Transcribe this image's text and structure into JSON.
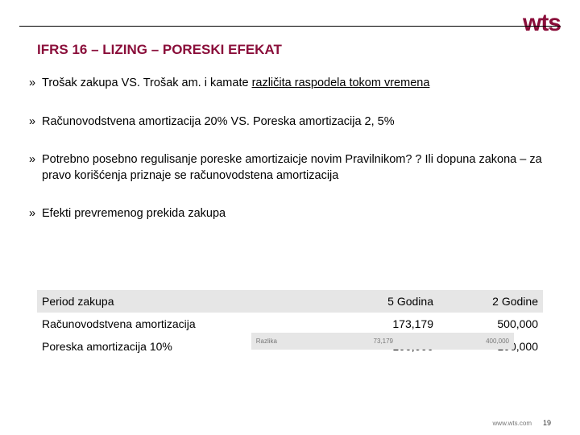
{
  "brand": {
    "logo_text": "wts",
    "logo_color": "#8a0e3a"
  },
  "title": "IFRS 16 – LIZING – PORESKI EFEKAT",
  "title_color": "#8a0e3a",
  "bullet_marker": "»",
  "bullets": [
    {
      "prefix": "Trošak zakupa VS. Trošak am. i kamate ",
      "underlined": "različita raspodela tokom vremena"
    },
    {
      "text": "Računovodstvena amortizacija 20% VS. Poreska amortizacija 2, 5%"
    },
    {
      "text": "Potrebno posebno regulisanje poreske amortizaicje novim Pravilnikom? ? Ili dopuna zakona – za pravo korišćenja priznaje se računovodstena amortizacija"
    },
    {
      "text": "Efekti prevremenog prekida zakupa"
    }
  ],
  "table": {
    "columns": [
      "Period zakupa",
      "5 Godina",
      "2 Godine"
    ],
    "rows": [
      [
        "Računovodstvena amortizacija",
        "173,179",
        "500,000"
      ],
      [
        "Poreska amortizacija 10%",
        "100,000",
        "100,000"
      ]
    ],
    "footer": [
      "Razlika",
      "73,179",
      "400,000"
    ],
    "header_bg": "#e6e6e6",
    "font_size": 14
  },
  "footer": {
    "url": "www.wts.com",
    "page_number": "19"
  }
}
